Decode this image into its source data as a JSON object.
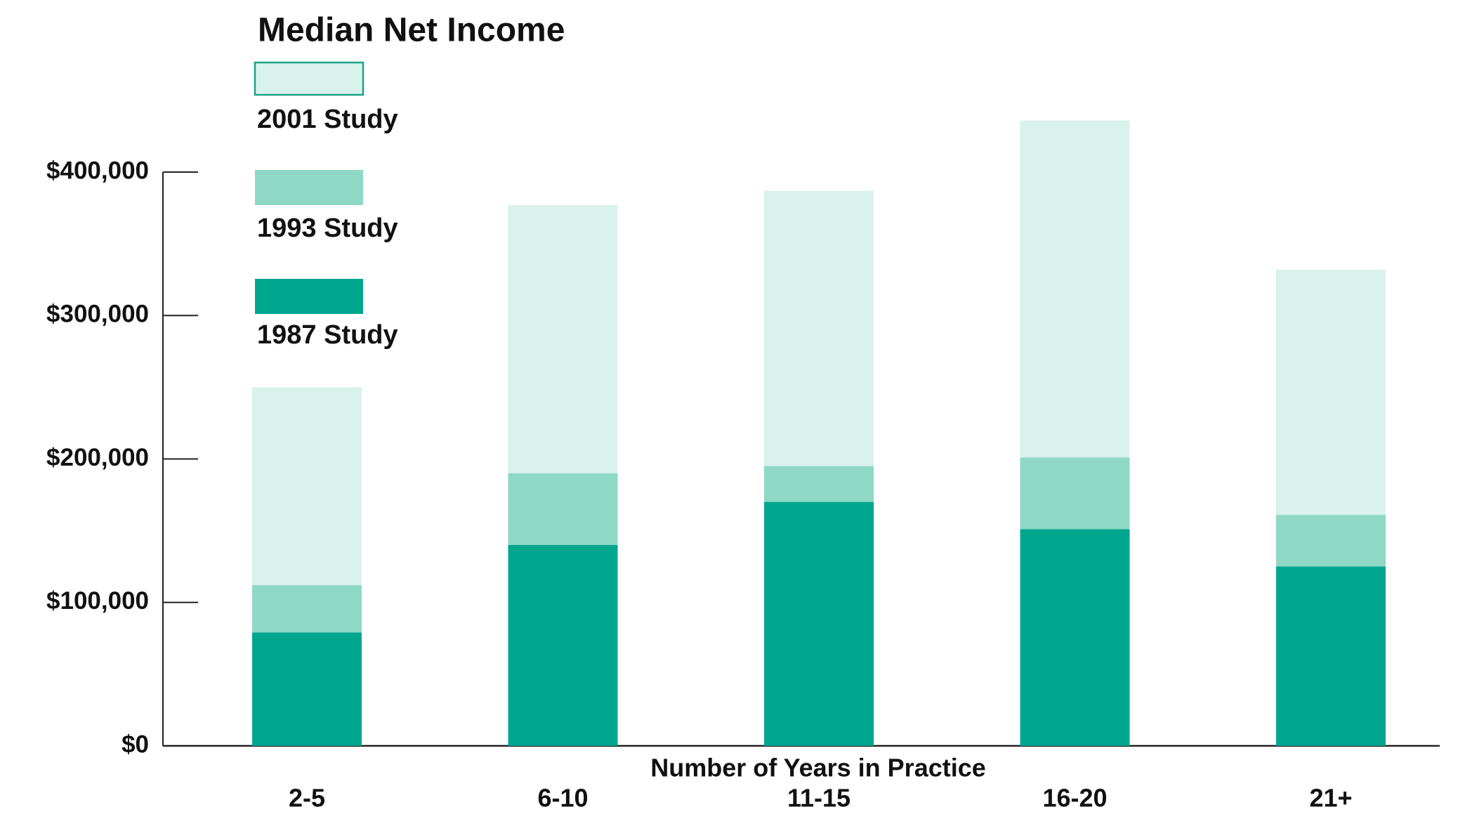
{
  "chart_data": {
    "type": "bar",
    "title": "Median Net Income",
    "x_label": "Number of Years in Practice",
    "categories": [
      "2-5",
      "6-10",
      "11-15",
      "16-20",
      "21+"
    ],
    "series": [
      {
        "name": "2001 Study",
        "color": "#d9f2eb",
        "values": [
          250000,
          377000,
          387000,
          436000,
          332000
        ]
      },
      {
        "name": "1993 Study",
        "color": "#8fd8c6",
        "values": [
          112000,
          190000,
          195000,
          201000,
          161000
        ]
      },
      {
        "name": "1987 Study",
        "color": "#00a68e",
        "values": [
          79000,
          140000,
          170000,
          151000,
          125000
        ]
      }
    ],
    "ylim": [
      0,
      400000
    ],
    "yticks": [
      {
        "value": 0,
        "label": "$0"
      },
      {
        "value": 100000,
        "label": "$100,000"
      },
      {
        "value": 200000,
        "label": "$200,000"
      },
      {
        "value": 300000,
        "label": "$300,000"
      },
      {
        "value": 400000,
        "label": "$400,000"
      }
    ],
    "legend": "top-left",
    "grid": false
  }
}
